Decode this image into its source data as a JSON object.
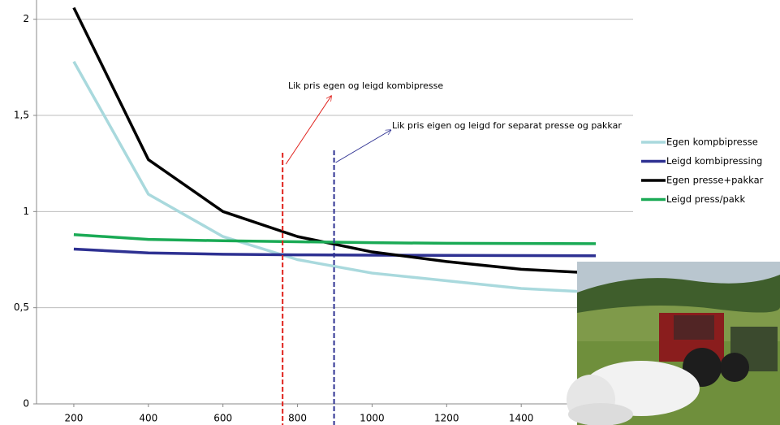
{
  "chart_data": {
    "type": "line",
    "x": [
      200,
      400,
      600,
      800,
      1000,
      1200,
      1400,
      1600
    ],
    "xlim": [
      100,
      1700
    ],
    "xticks": [
      200,
      400,
      600,
      800,
      1000,
      1200,
      1400,
      1600
    ],
    "ylim": [
      0,
      2.1
    ],
    "yticks": [
      0,
      {
        "value": 0.5,
        "label": "0,5"
      },
      1,
      {
        "value": 1.5,
        "label": "1,5"
      },
      2
    ],
    "grid": true,
    "legend": "right",
    "series": [
      {
        "name": "Egen kompbipresse",
        "color": "#a9d9dd",
        "values": [
          1.78,
          1.09,
          0.87,
          0.75,
          0.68,
          0.64,
          0.6,
          0.58
        ]
      },
      {
        "name": "Leigd kombipressing",
        "color": "#2e3192",
        "values": [
          0.805,
          0.785,
          0.778,
          0.775,
          0.773,
          0.772,
          0.771,
          0.77
        ]
      },
      {
        "name": "Egen presse+pakkar",
        "color": "#000000",
        "values": [
          2.06,
          1.27,
          1.0,
          0.87,
          0.79,
          0.74,
          0.7,
          0.68
        ]
      },
      {
        "name": "Leigd press/pakk",
        "color": "#1aaa55",
        "values": [
          0.88,
          0.855,
          0.848,
          0.843,
          0.838,
          0.835,
          0.834,
          0.833
        ]
      }
    ],
    "annotations": [
      {
        "text": "Lik pris egen og leigd kombipresse",
        "x": 760,
        "color": "#e0201b"
      },
      {
        "text": "Lik pris eigen og leigd for separat presse og pakkar",
        "x": 898,
        "color": "#2e3192"
      }
    ]
  }
}
